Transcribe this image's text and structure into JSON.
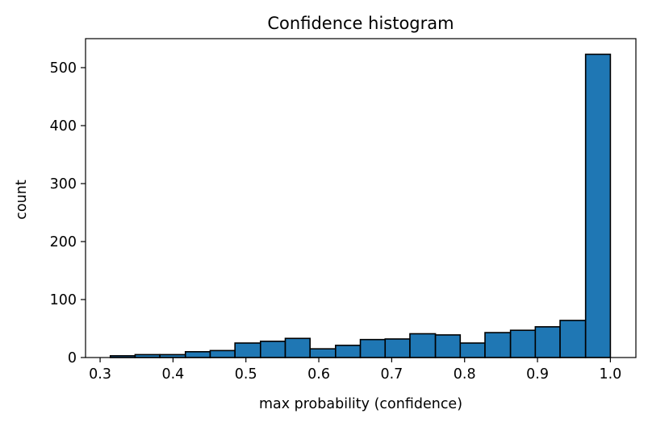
{
  "chart_data": {
    "type": "bar",
    "title": "Confidence histogram",
    "xlabel": "max probability (confidence)",
    "ylabel": "count",
    "xlim": [
      0.28,
      1.035
    ],
    "ylim": [
      0,
      550
    ],
    "x_ticks": [
      "0.3",
      "0.4",
      "0.5",
      "0.6",
      "0.7",
      "0.8",
      "0.9",
      "1.0"
    ],
    "y_ticks": [
      "0",
      "100",
      "200",
      "300",
      "400",
      "500"
    ],
    "bins": [
      {
        "x0": 0.314,
        "x1": 0.348,
        "count": 3
      },
      {
        "x0": 0.348,
        "x1": 0.382,
        "count": 5
      },
      {
        "x0": 0.382,
        "x1": 0.417,
        "count": 5
      },
      {
        "x0": 0.417,
        "x1": 0.451,
        "count": 10
      },
      {
        "x0": 0.451,
        "x1": 0.485,
        "count": 12
      },
      {
        "x0": 0.485,
        "x1": 0.52,
        "count": 25
      },
      {
        "x0": 0.52,
        "x1": 0.554,
        "count": 28
      },
      {
        "x0": 0.554,
        "x1": 0.588,
        "count": 33
      },
      {
        "x0": 0.588,
        "x1": 0.623,
        "count": 15
      },
      {
        "x0": 0.623,
        "x1": 0.657,
        "count": 21
      },
      {
        "x0": 0.657,
        "x1": 0.691,
        "count": 31
      },
      {
        "x0": 0.691,
        "x1": 0.725,
        "count": 32
      },
      {
        "x0": 0.725,
        "x1": 0.76,
        "count": 41
      },
      {
        "x0": 0.76,
        "x1": 0.794,
        "count": 39
      },
      {
        "x0": 0.794,
        "x1": 0.828,
        "count": 25
      },
      {
        "x0": 0.828,
        "x1": 0.863,
        "count": 43
      },
      {
        "x0": 0.863,
        "x1": 0.897,
        "count": 47
      },
      {
        "x0": 0.897,
        "x1": 0.931,
        "count": 53
      },
      {
        "x0": 0.931,
        "x1": 0.966,
        "count": 64
      },
      {
        "x0": 0.966,
        "x1": 1.0,
        "count": 523
      }
    ],
    "bar_color": "#1f77b4",
    "edge_color": "#000000",
    "grid": false,
    "legend": "none"
  }
}
